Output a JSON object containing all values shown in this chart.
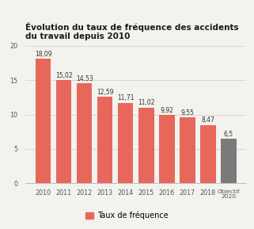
{
  "categories": [
    "2010",
    "2011",
    "2012",
    "2013",
    "2014",
    "2015",
    "2016",
    "2017",
    "2018",
    "Objectif\n2020"
  ],
  "values": [
    18.09,
    15.02,
    14.53,
    12.59,
    11.71,
    11.02,
    9.92,
    9.55,
    8.47,
    6.5
  ],
  "bar_colors": [
    "#E8675B",
    "#E8675B",
    "#E8675B",
    "#E8675B",
    "#E8675B",
    "#E8675B",
    "#E8675B",
    "#E8675B",
    "#E8675B",
    "#7A7A7A"
  ],
  "labels": [
    "18,09",
    "15,02",
    "14,53",
    "12,59",
    "11,71",
    "11,02",
    "9,92",
    "9,55",
    "8,47",
    "6,5"
  ],
  "title_line1": "Évolution du taux de fréquence des accidents",
  "title_line2": "du travail depuis 2010",
  "ylim": [
    0,
    20
  ],
  "yticks": [
    0,
    5,
    10,
    15,
    20
  ],
  "legend_label": "Taux de fréquence",
  "legend_color": "#E8675B",
  "title_fontsize": 7.5,
  "label_fontsize": 5.5,
  "tick_fontsize": 5.8,
  "legend_fontsize": 7.0,
  "background_color": "#F2F2EE",
  "plot_bg_color": "#F2F2EE"
}
